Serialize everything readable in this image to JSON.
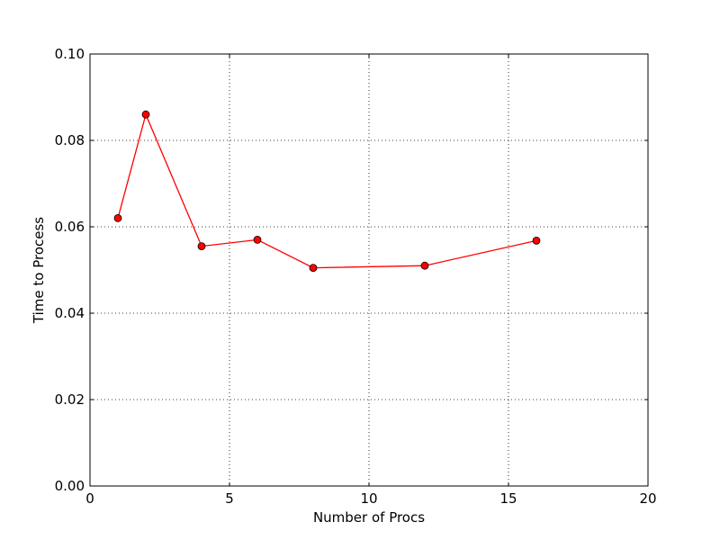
{
  "chart_data": {
    "type": "line",
    "title": "",
    "xlabel": "Number of Procs",
    "ylabel": "Time to Process",
    "xlim": [
      0,
      20
    ],
    "ylim": [
      0,
      0.1
    ],
    "grid": true,
    "x_ticks": [
      0,
      5,
      10,
      15,
      20
    ],
    "x_tick_labels": [
      "0",
      "5",
      "10",
      "15",
      "20"
    ],
    "y_ticks": [
      0,
      0.02,
      0.04,
      0.06,
      0.08,
      0.1
    ],
    "y_tick_labels": [
      "0.00",
      "0.02",
      "0.04",
      "0.06",
      "0.08",
      "0.10"
    ],
    "series": [
      {
        "color": "#ff0000",
        "marker": "circle",
        "x": [
          1,
          2,
          4,
          6,
          8,
          12,
          16
        ],
        "y": [
          0.062,
          0.086,
          0.0555,
          0.057,
          0.0505,
          0.051,
          0.0568
        ]
      }
    ]
  }
}
